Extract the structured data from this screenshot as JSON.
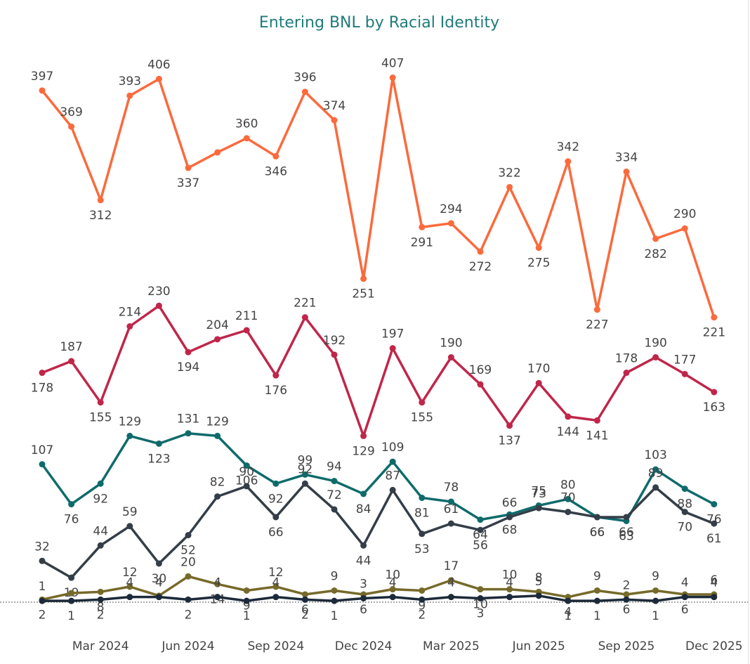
{
  "chart_data": {
    "type": "line",
    "title": "Entering BNL by Racial Identity",
    "categories": [
      null,
      null,
      "Mar 2024",
      null,
      null,
      "Jun 2024",
      null,
      null,
      "Sep 2024",
      null,
      null,
      "Dec 2024",
      null,
      null,
      "Mar 2025",
      null,
      null,
      "Jun 2025",
      null,
      null,
      "Sep 2025",
      null,
      null,
      "Dec 2025"
    ],
    "ylim": [
      0,
      440
    ],
    "series": [
      {
        "color": "#fb6a3c",
        "values": [
          397,
          369,
          312,
          393,
          406,
          337,
          349,
          360,
          346,
          396,
          374,
          251,
          407,
          291,
          294,
          272,
          322,
          275,
          342,
          227,
          334,
          282,
          290,
          221
        ],
        "value_labels": [
          "397",
          "369",
          "312",
          "393",
          "406",
          "337",
          null,
          "360",
          "346",
          "396",
          "374",
          "251",
          "407",
          "291",
          "294",
          "272",
          "322",
          "275",
          "342",
          "227",
          "334",
          "282",
          "290",
          "221"
        ]
      },
      {
        "color": "#c0264a",
        "values": [
          178,
          187,
          155,
          214,
          230,
          194,
          204,
          211,
          176,
          221,
          192,
          129,
          197,
          155,
          190,
          169,
          137,
          170,
          144,
          141,
          178,
          190,
          177,
          163
        ]
      },
      {
        "color": "#0f6b6b",
        "values": [
          107,
          76,
          92,
          129,
          123,
          131,
          129,
          106,
          92,
          99,
          94,
          84,
          109,
          81,
          78,
          64,
          68,
          75,
          80,
          66,
          63,
          103,
          88,
          76
        ]
      },
      {
        "color": "#343e48",
        "values": [
          32,
          19,
          44,
          59,
          30,
          52,
          82,
          90,
          66,
          92,
          72,
          44,
          87,
          53,
          61,
          56,
          66,
          73,
          70,
          66,
          66,
          89,
          70,
          61
        ]
      },
      {
        "color": "#766a2a",
        "values": [
          2,
          7,
          8,
          12,
          5,
          20,
          14,
          9,
          12,
          6,
          9,
          6,
          10,
          9,
          17,
          10,
          10,
          8,
          4,
          9,
          6,
          9,
          6,
          6
        ],
        "value_labels": [
          "2",
          null,
          "8",
          "12",
          null,
          "20",
          "14",
          "9",
          "12",
          "6",
          "9",
          "6",
          "10",
          "9",
          "17",
          "10",
          "10",
          "8",
          "4",
          "9",
          "6",
          "9",
          "6",
          "6"
        ]
      },
      {
        "color": "#1c2a3a",
        "values": [
          1,
          1,
          2,
          4,
          4,
          2,
          4,
          1,
          4,
          2,
          1,
          3,
          4,
          2,
          4,
          3,
          4,
          5,
          1,
          1,
          2,
          1,
          4,
          4
        ]
      }
    ]
  }
}
